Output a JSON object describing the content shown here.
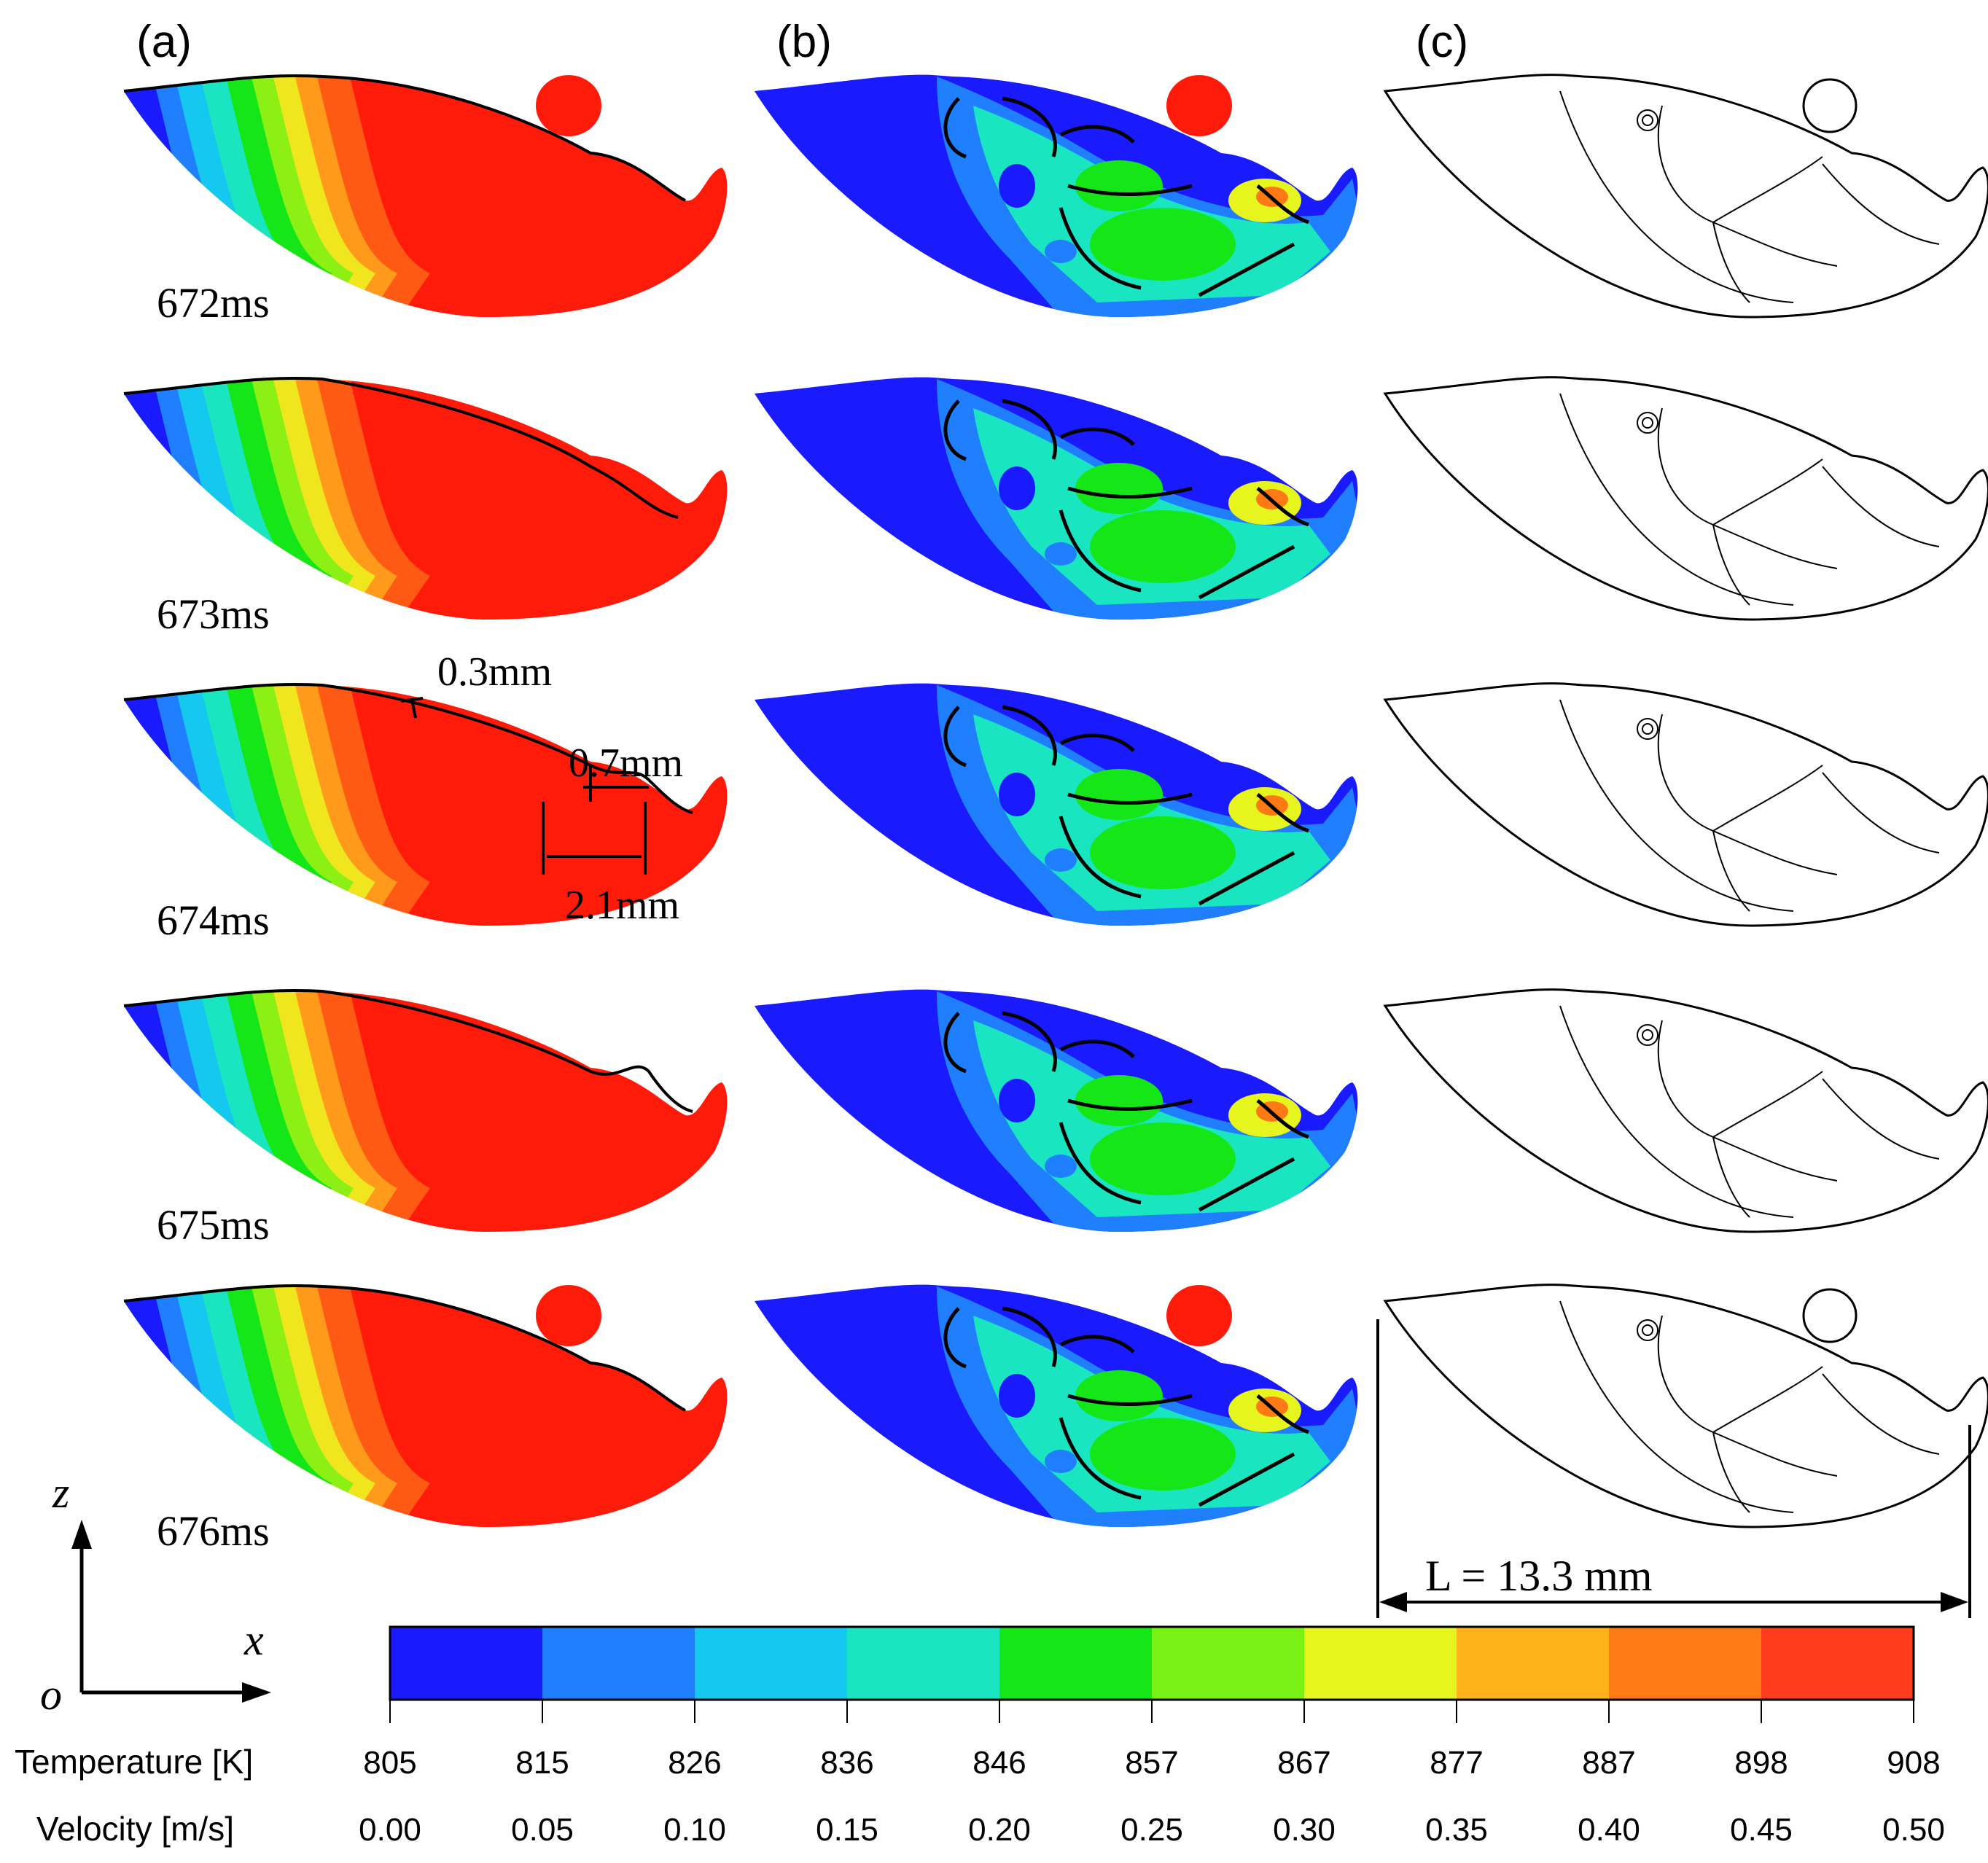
{
  "panels": [
    "(a)",
    "(b)",
    "(c)"
  ],
  "times": [
    "672ms",
    "673ms",
    "674ms",
    "675ms",
    "676ms"
  ],
  "annotations": {
    "depth_small": "0.3mm",
    "depth_large": "0.7mm",
    "width": "2.1mm",
    "length": "L = 13.3 mm"
  },
  "axes": {
    "z": "z",
    "x": "x",
    "origin": "o"
  },
  "legend": {
    "temperature_label": "Temperature [K]",
    "velocity_label": "Velocity [m/s]",
    "temperature_ticks": [
      "805",
      "815",
      "826",
      "836",
      "846",
      "857",
      "867",
      "877",
      "887",
      "898",
      "908"
    ],
    "velocity_ticks": [
      "0.00",
      "0.05",
      "0.10",
      "0.15",
      "0.20",
      "0.25",
      "0.30",
      "0.35",
      "0.40",
      "0.45",
      "0.50"
    ],
    "colors": [
      "#1a1aff",
      "#1f7fff",
      "#14c8f0",
      "#19e6c0",
      "#15e617",
      "#78f214",
      "#e6f51e",
      "#ffb21a",
      "#ff7a14",
      "#ff3c1e"
    ]
  }
}
